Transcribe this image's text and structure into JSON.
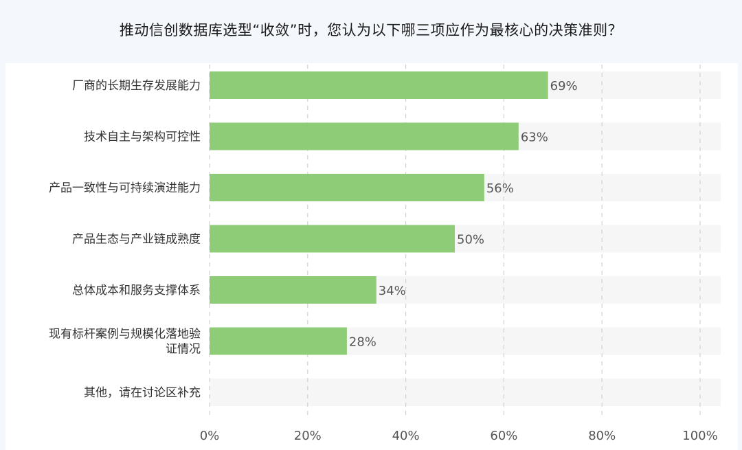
{
  "chart_data": {
    "type": "bar",
    "orientation": "horizontal",
    "title": "推动信创数据库选型“收敛”时，您认为以下哪三项应作为最核心的决策准则？",
    "categories": [
      "厂商的长期生存发展能力",
      "技术自主与架构可控性",
      "产品一致性与可持续演进能力",
      "产品生态与产业链成熟度",
      "总体成本和服务支撑体系",
      "现有标杆案例与规模化落地验证情况",
      "其他，请在讨论区补充"
    ],
    "values": [
      69,
      63,
      56,
      50,
      34,
      28,
      0
    ],
    "value_labels": [
      "69%",
      "63%",
      "56%",
      "50%",
      "34%",
      "28%",
      ""
    ],
    "xlim": [
      0,
      100
    ],
    "xticks": [
      "0%",
      "20%",
      "40%",
      "60%",
      "80%",
      "100%"
    ],
    "grid": "vertical dashed",
    "colors": {
      "bar": "#8fcc77",
      "track": "#f6f6f6",
      "grid": "#d0d0d0",
      "page_background": "#f4f7fc"
    }
  }
}
